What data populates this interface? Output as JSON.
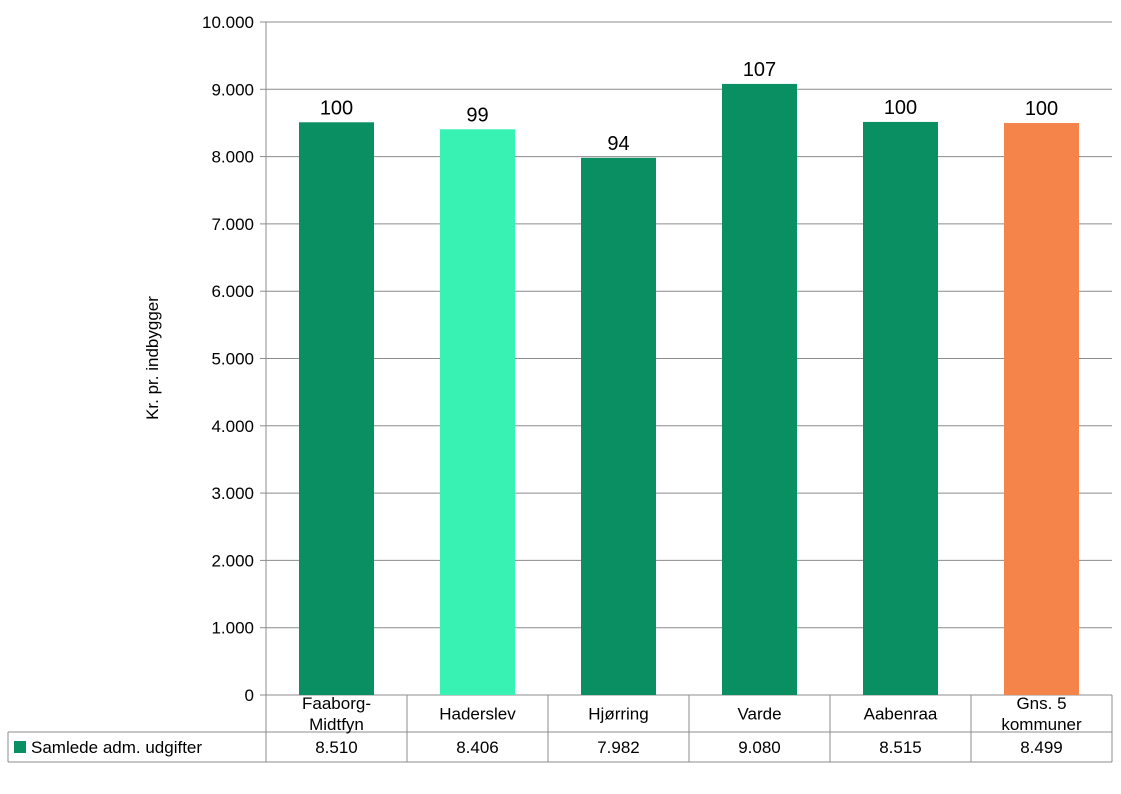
{
  "chart_data": {
    "type": "bar",
    "ylabel": "Kr. pr. indbygger",
    "ylim": [
      0,
      10000
    ],
    "yticks": [
      {
        "value": 0,
        "label": "0"
      },
      {
        "value": 1000,
        "label": "1.000"
      },
      {
        "value": 2000,
        "label": "2.000"
      },
      {
        "value": 3000,
        "label": "3.000"
      },
      {
        "value": 4000,
        "label": "4.000"
      },
      {
        "value": 5000,
        "label": "5.000"
      },
      {
        "value": 6000,
        "label": "6.000"
      },
      {
        "value": 7000,
        "label": "7.000"
      },
      {
        "value": 8000,
        "label": "8.000"
      },
      {
        "value": 9000,
        "label": "9.000"
      },
      {
        "value": 10000,
        "label": "10.000"
      }
    ],
    "grid": true,
    "categories": [
      [
        "Faaborg-",
        "Midtfyn"
      ],
      [
        "Haderslev"
      ],
      [
        "Hjørring"
      ],
      [
        "Varde"
      ],
      [
        "Aabenraa"
      ],
      [
        "Gns. 5",
        "kommuner"
      ]
    ],
    "series": [
      {
        "name": "Samlede adm. udgifter",
        "legend_color": "#0a8f62",
        "values": [
          8510,
          8406,
          7982,
          9080,
          8515,
          8499
        ],
        "table_labels": [
          "8.510",
          "8.406",
          "7.982",
          "9.080",
          "8.515",
          "8.499"
        ],
        "bar_colors": [
          "#0a8f62",
          "#37f2b2",
          "#0a8f62",
          "#0a8f62",
          "#0a8f62",
          "#f5844a"
        ],
        "data_labels": [
          "100",
          "99",
          "94",
          "107",
          "100",
          "100"
        ]
      }
    ]
  }
}
